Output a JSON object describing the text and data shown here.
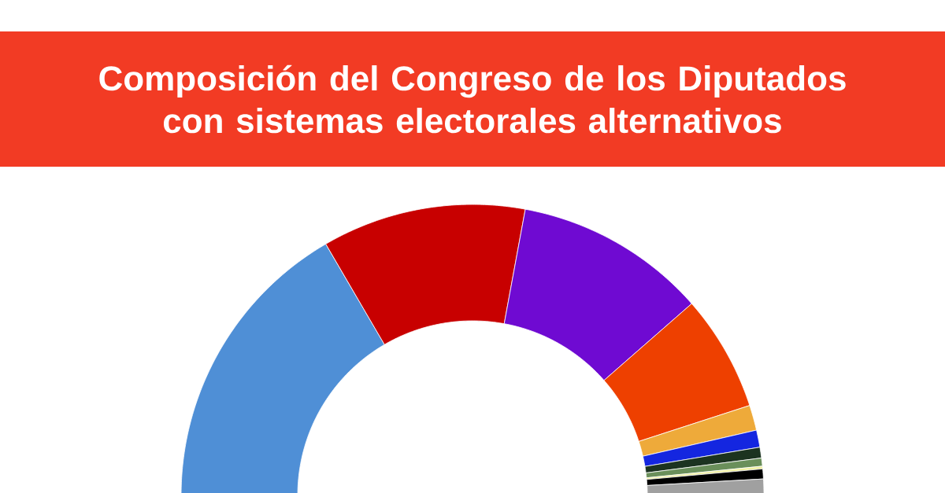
{
  "chart_data": {
    "type": "donut",
    "title": "Composición del Congreso de los Diputados con sistemas electorales alternativos",
    "categories": [
      null,
      null,
      null,
      null,
      null,
      null,
      null,
      null,
      null,
      null,
      null
    ],
    "values": [
      33.2,
      22.6,
      21.3,
      12.9,
      2.8,
      1.9,
      1.2,
      0.9,
      0.3,
      1.1,
      1.8
    ],
    "colors": [
      "#4f8fd6",
      "#c80000",
      "#6f0ad2",
      "#ee4000",
      "#eeaa3a",
      "#1426e0",
      "#1c3320",
      "#6a8f5a",
      "#f0f0a0",
      "#000000",
      "#a0a0a0"
    ]
  }
}
